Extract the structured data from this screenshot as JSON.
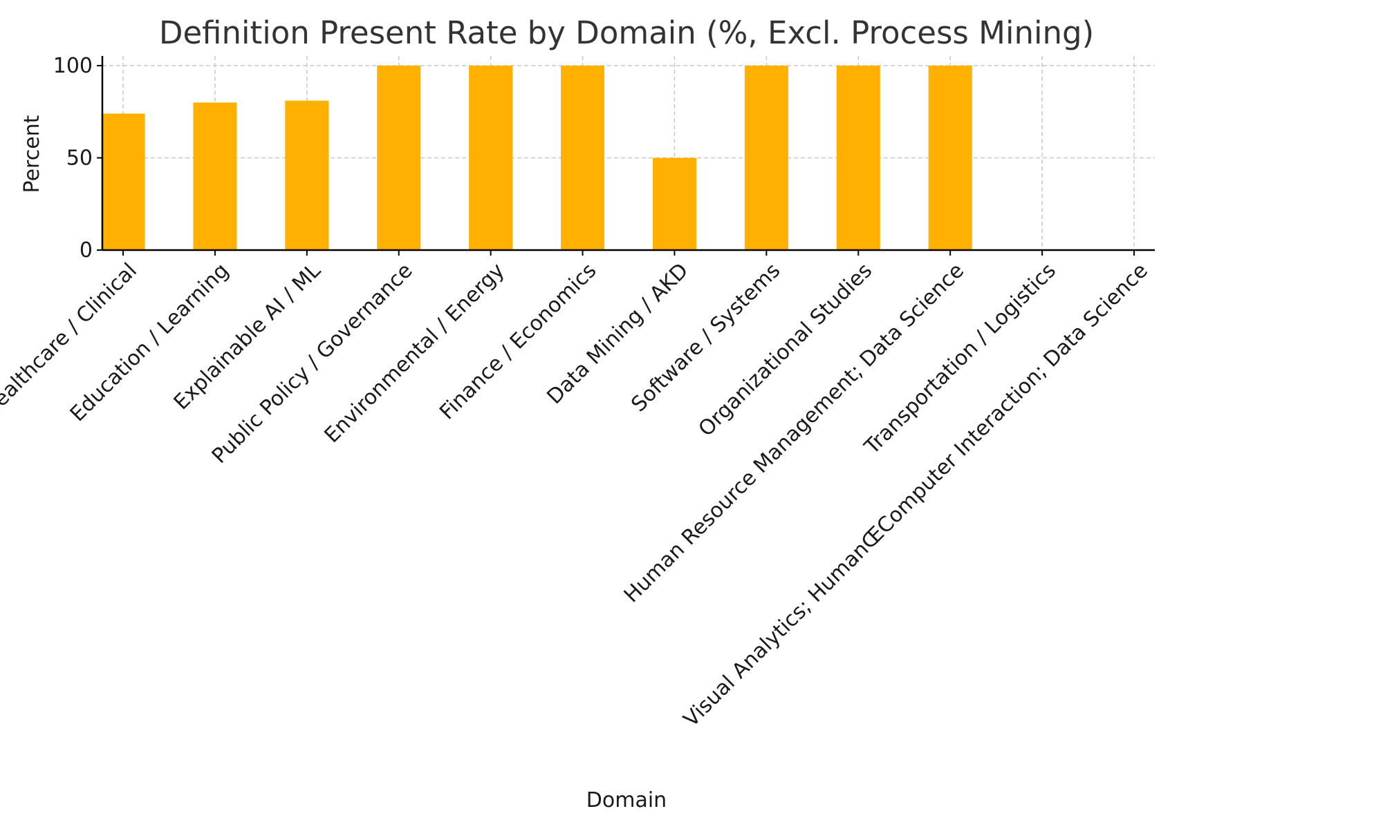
{
  "chart_data": {
    "type": "bar",
    "title": "Definition Present Rate by Domain (%, Excl. Process Mining)",
    "xlabel": "Domain",
    "ylabel": "Percent",
    "ylim": [
      0,
      100
    ],
    "yticks": [
      0,
      50,
      100
    ],
    "grid": true,
    "bar_color": "#FFB000",
    "categories": [
      "Healthcare / Clinical",
      "Education / Learning",
      "Explainable AI / ML",
      "Public Policy / Governance",
      "Environmental / Energy",
      "Finance / Economics",
      "Data Mining / AKD",
      "Software / Systems",
      "Organizational Studies",
      "Human Resource Management; Data Science",
      "Transportation / Logistics",
      "Visual Analytics; HumanŒComputer Interaction; Data Science"
    ],
    "values": [
      74,
      80,
      81,
      100,
      100,
      100,
      50,
      100,
      100,
      100,
      0,
      0
    ]
  }
}
